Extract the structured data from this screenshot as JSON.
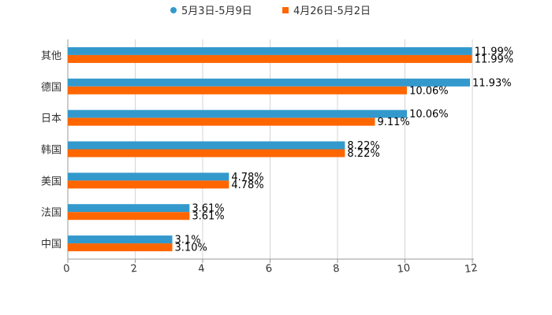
{
  "chart_data": {
    "type": "bar",
    "orientation": "horizontal",
    "title": "",
    "xlabel": "",
    "ylabel": "",
    "categories": [
      "其他",
      "德国",
      "日本",
      "韩国",
      "美国",
      "法国",
      "中国"
    ],
    "series": [
      {
        "name": "5月3日-5月9日",
        "color": "#3399cc",
        "values": [
          11.99,
          11.93,
          10.06,
          8.22,
          4.78,
          3.61,
          3.1
        ],
        "labels": [
          "11.99%",
          "11.93%",
          "10.06%",
          "8.22%",
          "4.78%",
          "3.61%",
          "3.1%"
        ]
      },
      {
        "name": "4月26日-5月2日",
        "color": "#ff6600",
        "values": [
          11.99,
          10.06,
          9.11,
          8.22,
          4.78,
          3.61,
          3.1
        ],
        "labels": [
          "11.99%",
          "10.06%",
          "9.11%",
          "8.22%",
          "4.78%",
          "3.61%",
          "3.10%"
        ]
      }
    ],
    "xlim": [
      0,
      12
    ],
    "xticks": [
      "0",
      "2",
      "4",
      "6",
      "8",
      "10",
      "12"
    ],
    "grid": true,
    "legend": "top-center"
  }
}
